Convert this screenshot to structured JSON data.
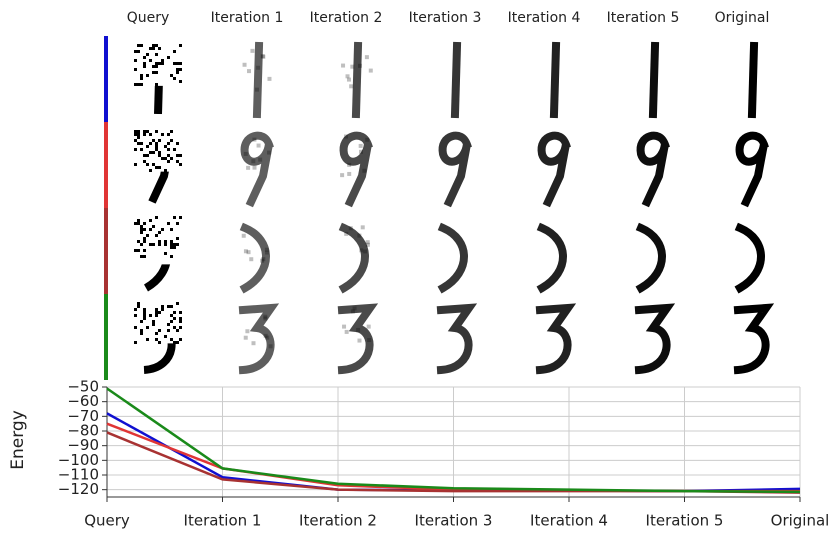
{
  "chart_data": {
    "type": "line",
    "categories": [
      "Query",
      "Iteration 1",
      "Iteration 2",
      "Iteration 3",
      "Iteration 4",
      "Iteration 5",
      "Original"
    ],
    "ylabel": "Energy",
    "ylim": [
      -125,
      -50
    ],
    "yticks": [
      {
        "value": -50,
        "label": "−50"
      },
      {
        "value": -60,
        "label": "−60"
      },
      {
        "value": -70,
        "label": "−70"
      },
      {
        "value": -80,
        "label": "−80"
      },
      {
        "value": -90,
        "label": "−90"
      },
      {
        "value": -100,
        "label": "−100"
      },
      {
        "value": -110,
        "label": "−110"
      },
      {
        "value": -120,
        "label": "−120"
      }
    ],
    "grid": true,
    "series": [
      {
        "color": "#1010d0",
        "values": [
          -68,
          -111.5,
          -120,
          -120.5,
          -120.5,
          -121,
          -119.5
        ]
      },
      {
        "color": "#e03535",
        "values": [
          -75,
          -105.5,
          -117,
          -120,
          -120.5,
          -121,
          -121
        ]
      },
      {
        "color": "#a83232",
        "values": [
          -81,
          -113,
          -120,
          -121,
          -121,
          -121,
          -122
        ]
      },
      {
        "color": "#1a8a1a",
        "values": [
          -51,
          -105.5,
          -116,
          -119,
          -120,
          -121,
          -121.5
        ]
      }
    ]
  }
}
